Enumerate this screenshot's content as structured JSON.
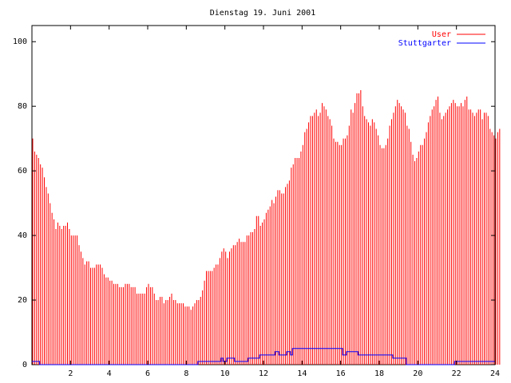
{
  "chart_data": {
    "type": "line",
    "title": "Dienstag 19. Juni 2001",
    "xlim": [
      0,
      24
    ],
    "ylim": [
      0,
      105
    ],
    "xticks": [
      2,
      4,
      6,
      8,
      10,
      12,
      14,
      16,
      18,
      20,
      22,
      24
    ],
    "yticks": [
      0,
      20,
      40,
      60,
      80,
      100
    ],
    "legend_position": "top-right",
    "grid": false,
    "series": [
      {
        "name": "User",
        "style": "impulses",
        "color": "#ff0000",
        "step_hours": 0.1,
        "values": [
          70,
          66,
          65,
          64,
          62,
          61,
          58,
          55,
          53,
          50,
          47,
          45,
          42,
          44,
          43,
          42,
          43,
          43,
          44,
          42,
          40,
          40,
          40,
          40,
          37,
          35,
          33,
          31,
          32,
          32,
          30,
          30,
          30,
          31,
          31,
          31,
          30,
          28,
          27,
          27,
          26,
          26,
          25,
          25,
          25,
          24,
          24,
          24,
          25,
          25,
          25,
          24,
          24,
          24,
          22,
          22,
          22,
          22,
          22,
          24,
          25,
          24,
          24,
          22,
          20,
          20,
          21,
          21,
          19,
          20,
          20,
          21,
          22,
          20,
          20,
          19,
          19,
          19,
          19,
          18,
          18,
          18,
          17,
          18,
          19,
          20,
          20,
          21,
          23,
          26,
          29,
          29,
          29,
          29,
          30,
          31,
          31,
          33,
          35,
          36,
          35,
          33,
          35,
          36,
          37,
          37,
          38,
          39,
          38,
          38,
          38,
          40,
          40,
          41,
          41,
          42,
          46,
          46,
          43,
          44,
          45,
          47,
          48,
          49,
          51,
          50,
          52,
          54,
          54,
          53,
          53,
          55,
          56,
          57,
          61,
          62,
          64,
          64,
          64,
          66,
          68,
          72,
          73,
          75,
          77,
          77,
          78,
          79,
          77,
          78,
          81,
          80,
          79,
          77,
          76,
          74,
          70,
          69,
          69,
          68,
          68,
          70,
          70,
          71,
          74,
          79,
          78,
          81,
          84,
          84,
          85,
          80,
          77,
          76,
          75,
          74,
          76,
          75,
          73,
          71,
          68,
          67,
          67,
          68,
          70,
          74,
          76,
          78,
          80,
          82,
          81,
          80,
          79,
          78,
          74,
          73,
          69,
          65,
          63,
          64,
          66,
          68,
          68,
          70,
          72,
          75,
          77,
          79,
          80,
          82,
          83,
          78,
          76,
          77,
          78,
          79,
          80,
          81,
          82,
          81,
          80,
          80,
          81,
          80,
          82,
          83,
          79,
          79,
          78,
          77,
          78,
          79,
          79,
          76,
          78,
          78,
          77,
          73,
          72,
          71,
          70,
          72,
          73
        ]
      },
      {
        "name": "Stuttgarter",
        "style": "steps",
        "color": "#0000ff",
        "points": [
          [
            0.0,
            1
          ],
          [
            0.4,
            0
          ],
          [
            8.6,
            1
          ],
          [
            9.8,
            2
          ],
          [
            9.9,
            1
          ],
          [
            10.1,
            2
          ],
          [
            10.5,
            1
          ],
          [
            11.2,
            2
          ],
          [
            11.8,
            3
          ],
          [
            12.6,
            4
          ],
          [
            12.8,
            3
          ],
          [
            13.2,
            4
          ],
          [
            13.4,
            3
          ],
          [
            13.5,
            5
          ],
          [
            16.1,
            3
          ],
          [
            16.3,
            4
          ],
          [
            16.9,
            3
          ],
          [
            18.7,
            2
          ],
          [
            19.4,
            0
          ],
          [
            21.9,
            1
          ],
          [
            24.0,
            1
          ]
        ]
      }
    ]
  }
}
